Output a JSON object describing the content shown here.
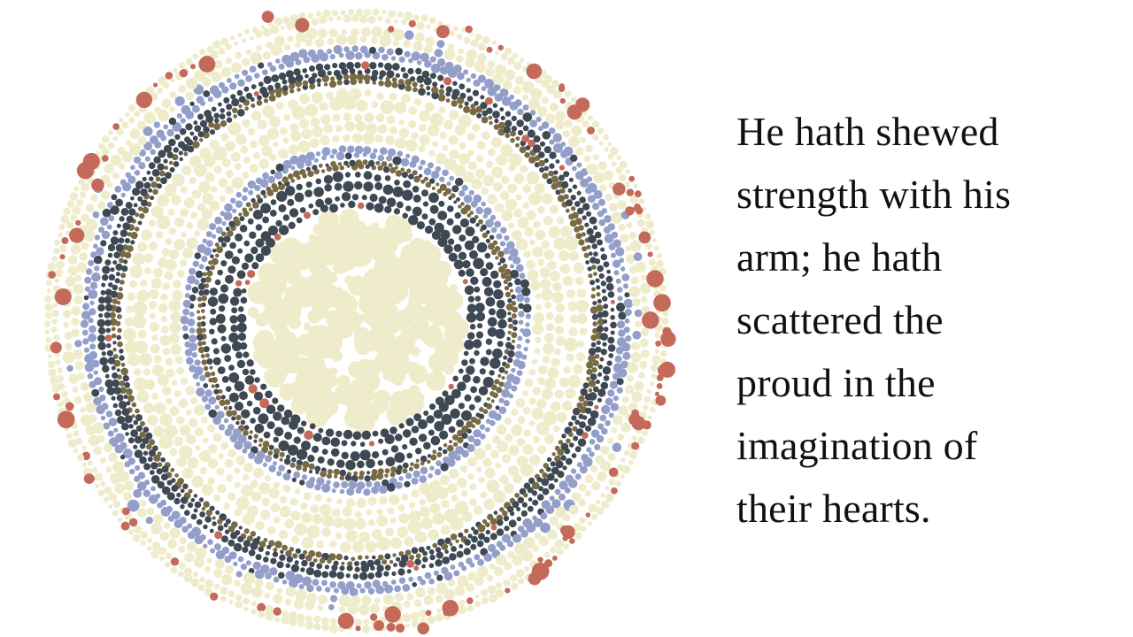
{
  "verse": {
    "lines": [
      "He hath shewed",
      "strength with his",
      "arm; he hath",
      "scattered the",
      "proud in the",
      "imagination of",
      "their hearts."
    ]
  },
  "artwork": {
    "description_free": true,
    "palette": {
      "cream": "#efeccb",
      "periwinkle": "#939fc9",
      "slate": "#3e4954",
      "olive": "#786a45",
      "terracotta": "#c46a5b"
    }
  }
}
